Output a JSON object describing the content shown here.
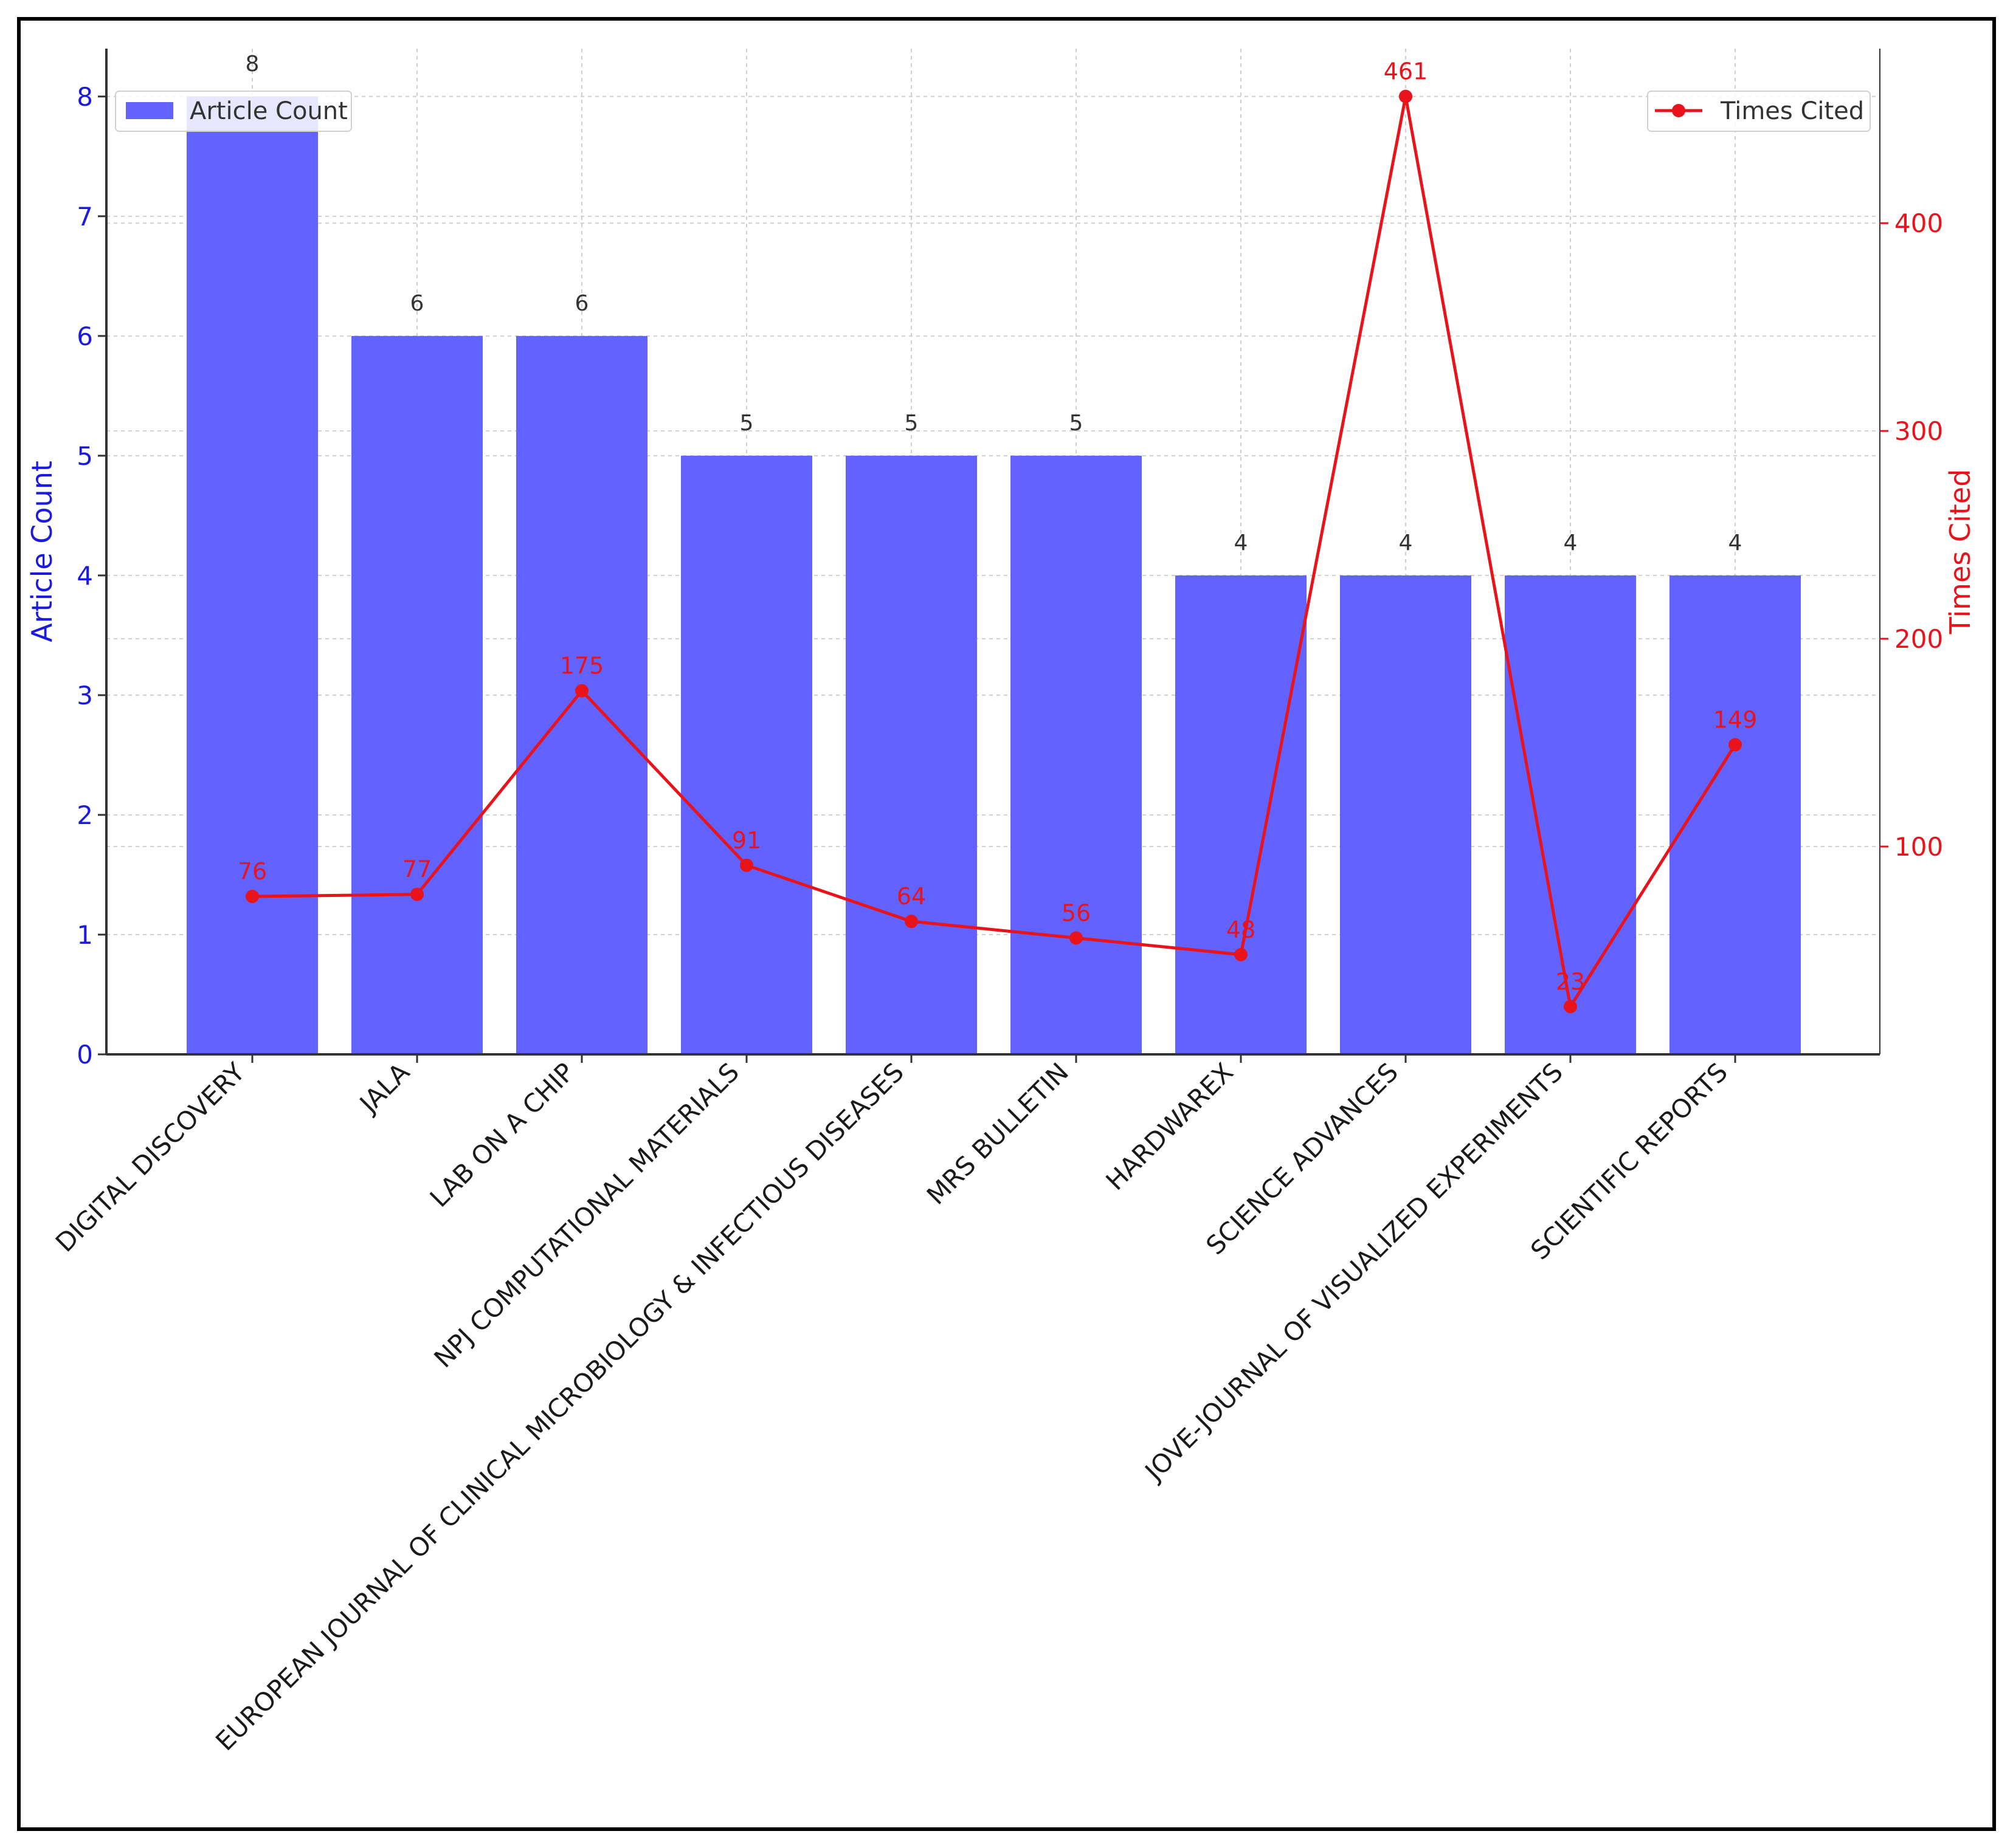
{
  "chart_data": {
    "type": "bar",
    "categories": [
      "DIGITAL DISCOVERY",
      "JALA",
      "LAB ON A CHIP",
      "NPJ COMPUTATIONAL MATERIALS",
      "EUROPEAN JOURNAL OF CLINICAL MICROBIOLOGY & INFECTIOUS DISEASES",
      "MRS BULLETIN",
      "HARDWAREX",
      "SCIENCE ADVANCES",
      "JOVE-JOURNAL OF VISUALIZED EXPERIMENTS",
      "SCIENTIFIC REPORTS"
    ],
    "series": [
      {
        "name": "Article Count",
        "type": "bar",
        "axis": "left",
        "color": "#6262FF",
        "values": [
          8,
          6,
          6,
          5,
          5,
          5,
          4,
          4,
          4,
          4
        ]
      },
      {
        "name": "Times Cited",
        "type": "line",
        "axis": "right",
        "color": "#E8131B",
        "values": [
          76,
          77,
          175,
          91,
          64,
          56,
          48,
          461,
          23,
          149
        ]
      }
    ],
    "ylabel_left": "Article Count",
    "ylabel_right": "Times Cited",
    "ylim_left": [
      0,
      8.4
    ],
    "yticks_left": [
      0,
      1,
      2,
      3,
      4,
      5,
      6,
      7,
      8
    ],
    "ylim_right": [
      0,
      484
    ],
    "yticks_right": [
      100,
      200,
      300,
      400
    ],
    "left_axis_color": "#1B1BE0",
    "right_axis_color": "#E8131B",
    "grid": true,
    "legend_left_placement": "top-left",
    "legend_right_placement": "top-right"
  }
}
